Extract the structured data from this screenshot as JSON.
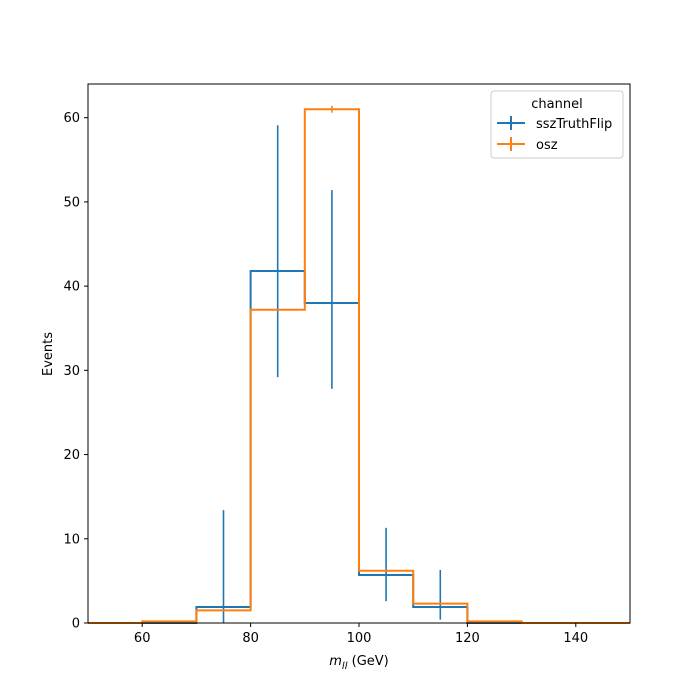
{
  "chart_data": {
    "type": "step-histogram",
    "xlabel_main": "m",
    "xlabel_sub": "ll",
    "xlabel_unit": " (GeV)",
    "ylabel": "Events",
    "xlim": [
      50,
      150
    ],
    "ylim": [
      0,
      64
    ],
    "xticks": [
      60,
      80,
      100,
      120,
      140
    ],
    "yticks": [
      0,
      10,
      20,
      30,
      40,
      50,
      60
    ],
    "bin_edges": [
      50,
      60,
      70,
      80,
      90,
      100,
      110,
      120,
      130,
      140,
      150
    ],
    "legend": {
      "title": "channel",
      "location": "upper right"
    },
    "series": [
      {
        "name": "sszTruthFlip",
        "color": "#1f77b4",
        "values": [
          0,
          0,
          1.9,
          41.8,
          38.0,
          5.7,
          1.9,
          0,
          0,
          0
        ],
        "errors": [
          null,
          null,
          [
            0.0,
            13.4
          ],
          [
            29.2,
            59.1
          ],
          [
            27.8,
            51.4
          ],
          [
            2.6,
            11.3
          ],
          [
            0.4,
            6.3
          ],
          null,
          null,
          null
        ]
      },
      {
        "name": "osz",
        "color": "#ff7f0e",
        "values": [
          0,
          0.2,
          1.5,
          37.2,
          61.0,
          6.2,
          2.3,
          0.2,
          0,
          0
        ],
        "errors": [
          null,
          null,
          null,
          null,
          [
            60.6,
            61.4
          ],
          null,
          null,
          null,
          null,
          null
        ]
      }
    ]
  }
}
